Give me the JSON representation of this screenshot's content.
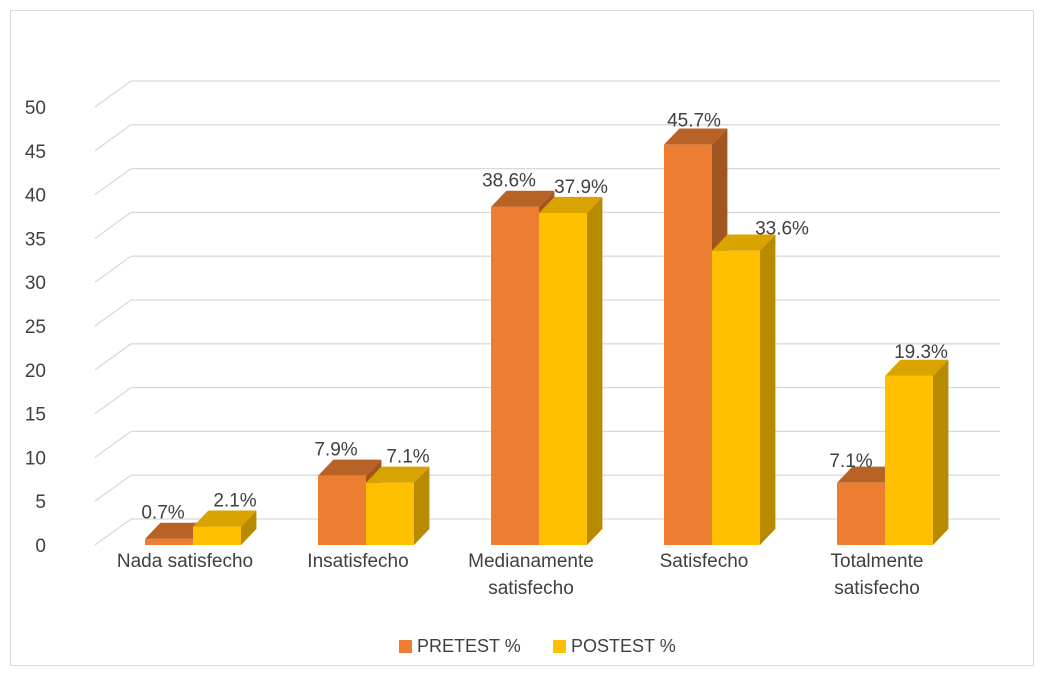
{
  "chart_data": {
    "type": "bar",
    "categories": [
      [
        "Nada satisfecho"
      ],
      [
        "Insatisfecho"
      ],
      [
        "Medianamente",
        "satisfecho"
      ],
      [
        "Satisfecho"
      ],
      [
        "Totalmente",
        "satisfecho"
      ]
    ],
    "series": [
      {
        "name": "PRETEST %",
        "color": "#ED7D31",
        "values": [
          0.7,
          7.9,
          38.6,
          45.7,
          7.1
        ],
        "labels": [
          "0.7%",
          "7.9%",
          "38.6%",
          "45.7%",
          "7.1%"
        ]
      },
      {
        "name": "POSTEST %",
        "color": "#FFC000",
        "values": [
          2.1,
          7.1,
          37.9,
          33.6,
          19.3
        ],
        "labels": [
          "2.1%",
          "7.1%",
          "37.9%",
          "33.6%",
          "19.3%"
        ]
      }
    ],
    "yticks": [
      "0",
      "5",
      "10",
      "15",
      "20",
      "25",
      "30",
      "35",
      "40",
      "45",
      "50"
    ],
    "ylim": [
      0,
      50
    ],
    "grid": true,
    "legend_position": "bottom",
    "title": "",
    "xlabel": "",
    "ylabel": ""
  }
}
